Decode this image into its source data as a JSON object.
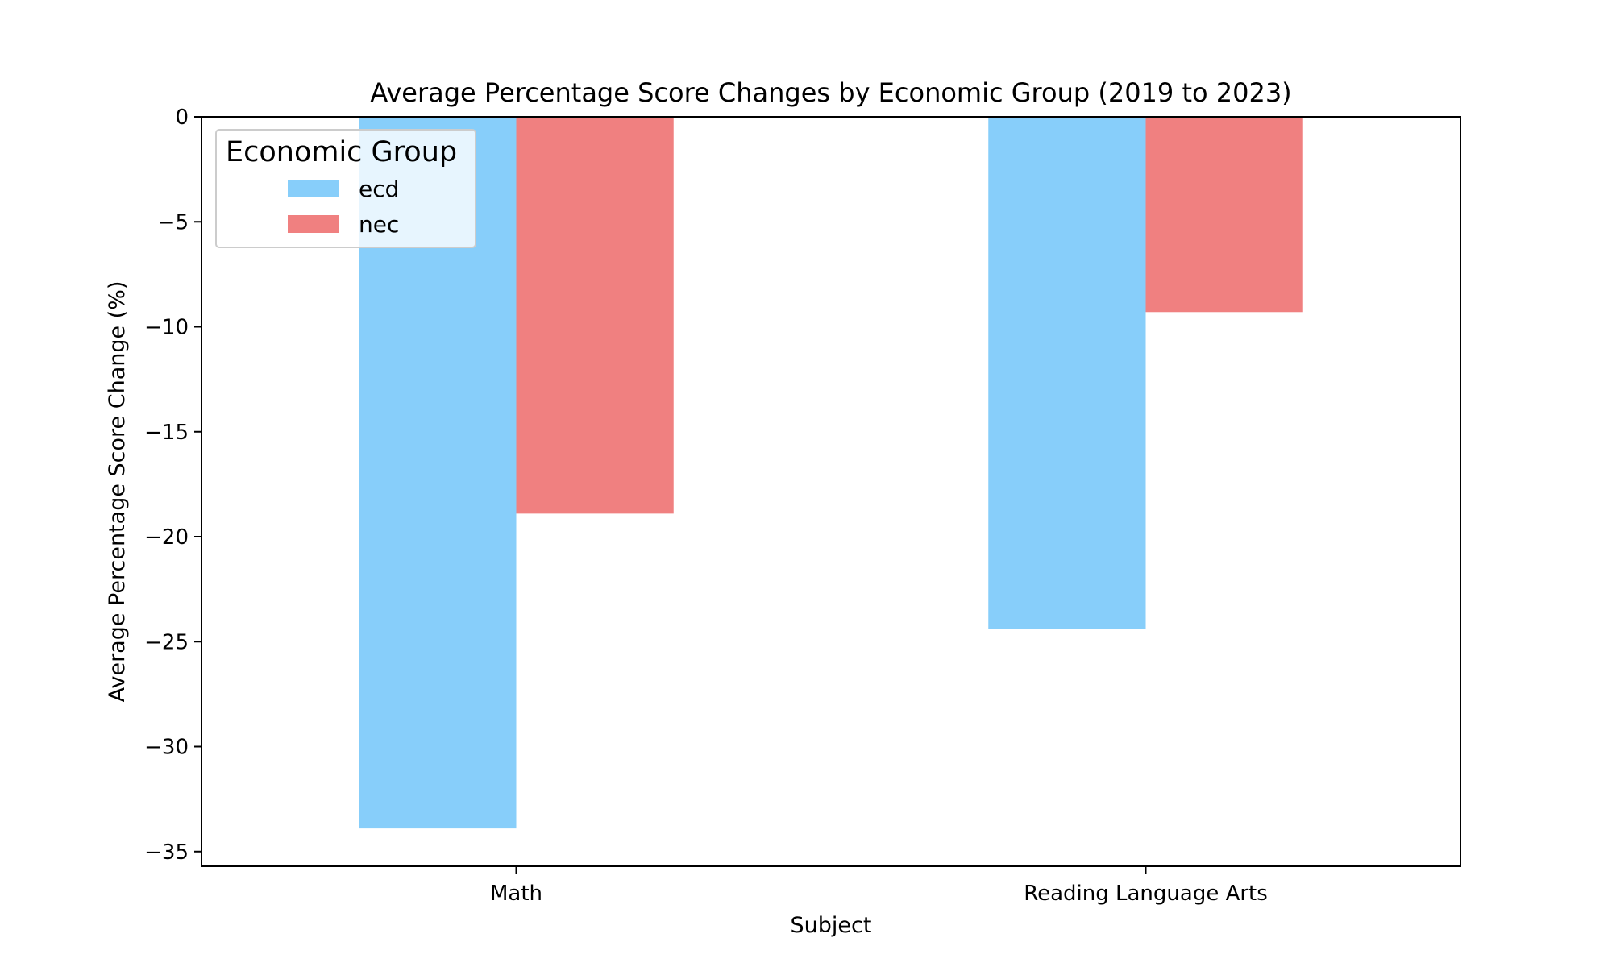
{
  "chart_data": {
    "type": "bar",
    "title": "Average Percentage Score Changes by Economic Group (2019 to 2023)",
    "xlabel": "Subject",
    "ylabel": "Average Percentage Score Change (%)",
    "categories": [
      "Math",
      "Reading Language Arts"
    ],
    "series": [
      {
        "name": "ecd",
        "values": [
          -33.9,
          -24.4
        ],
        "color": "#87CEFA"
      },
      {
        "name": "nec",
        "values": [
          -18.9,
          -9.3
        ],
        "color": "#F08080"
      }
    ],
    "ylim": [
      -35.7,
      0
    ],
    "yticks": [
      0,
      -5,
      -10,
      -15,
      -20,
      -25,
      -30,
      -35
    ],
    "ytick_labels": [
      "0",
      "−5",
      "−10",
      "−15",
      "−20",
      "−25",
      "−30",
      "−35"
    ],
    "legend": {
      "title": "Economic Group",
      "placement": "upper-left"
    },
    "grid": false
  }
}
